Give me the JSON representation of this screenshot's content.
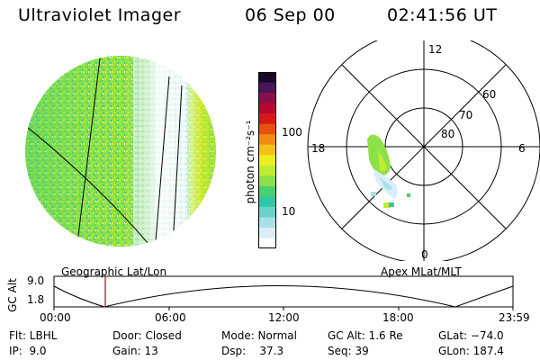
{
  "header": {
    "title": "Ultraviolet Imager",
    "date": "06 Sep 00",
    "time": "02:41:56 UT"
  },
  "colorbar": {
    "unit_label": "photon cm⁻²s⁻¹",
    "ticks": [
      "100",
      "10"
    ],
    "colors": [
      "#ffffff",
      "#d8eef8",
      "#a8e0e8",
      "#6ad2c8",
      "#2ec8a8",
      "#48d070",
      "#8ee048",
      "#c0ec30",
      "#ecf020",
      "#f4c018",
      "#f08c10",
      "#e85010",
      "#d81818",
      "#b80830",
      "#88104a",
      "#4a1458",
      "#1a0828"
    ]
  },
  "polar_plot": {
    "mlt_labels": [
      "12",
      "18",
      "6",
      "0"
    ],
    "lat_labels": [
      "60",
      "70",
      "80"
    ]
  },
  "gc_alt_plot": {
    "axis_label": "GC Alt",
    "y_ticks": [
      "9.0",
      "1.8"
    ],
    "x_ticks": [
      "00:00",
      "06:00",
      "12:00",
      "18:00",
      "23:59"
    ],
    "left_caption": "Geographic Lat/Lon",
    "right_caption": "Apex MLat/MLT",
    "marker_color": "#c00000"
  },
  "info": {
    "flt": "Flt: LBHL",
    "ip": "IP:  9.0",
    "door": "Door: Closed",
    "gain": "Gain: 13",
    "mode": "Mode: Normal",
    "dsp": "Dsp:    37.3",
    "gc_alt": "GC Alt: 1.6 Re",
    "seq": "Seq: 39",
    "glat": "GLat: −74.0",
    "glon": "GLon: 187.4"
  }
}
